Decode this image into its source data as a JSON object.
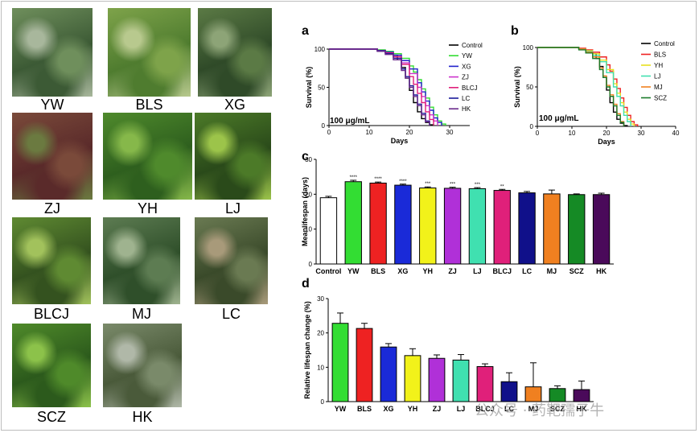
{
  "photos": [
    {
      "label": "YW",
      "colors": [
        "#3c5a35",
        "#6f8f5c",
        "#a8b79c"
      ]
    },
    {
      "label": "BLS",
      "colors": [
        "#4f7c2f",
        "#7ea34a",
        "#b8c98e"
      ]
    },
    {
      "label": "XG",
      "colors": [
        "#2f4a28",
        "#5b7a45",
        "#8da477"
      ]
    },
    {
      "label": "ZJ",
      "colors": [
        "#5a2a2a",
        "#7a4a3a",
        "#6b7a40"
      ]
    },
    {
      "label": "YH",
      "colors": [
        "#2e5f1e",
        "#4f8a2c",
        "#86b84a"
      ]
    },
    {
      "label": "LJ",
      "colors": [
        "#2a4a1a",
        "#4c7a28",
        "#9cc44a"
      ]
    },
    {
      "label": "BLCJ",
      "colors": [
        "#34521f",
        "#5f8a32",
        "#a2c25c"
      ]
    },
    {
      "label": "MJ",
      "colors": [
        "#2f4f2a",
        "#5d7c52",
        "#9fb38f"
      ]
    },
    {
      "label": "LC",
      "colors": [
        "#3a4a2a",
        "#6a7a52",
        "#a89a7a"
      ]
    },
    {
      "label": "SCZ",
      "colors": [
        "#2c5a1c",
        "#4f8a2a",
        "#8cc24a"
      ]
    },
    {
      "label": "HK",
      "colors": [
        "#4a5a3a",
        "#7a8a6a",
        "#b0b8a8"
      ]
    }
  ],
  "panels": {
    "a": {
      "letter": "a",
      "annotation": "100 μg/mL"
    },
    "b": {
      "letter": "b",
      "annotation": "100 μg/mL"
    },
    "c": {
      "letter": "c"
    },
    "d": {
      "letter": "d"
    }
  },
  "watermark": "公众号 · 药靶孺子牛",
  "chart_data": [
    {
      "type": "line",
      "panel": "a",
      "xlabel": "Days",
      "ylabel": "Survival (%)",
      "xlim": [
        0,
        35
      ],
      "ylim": [
        0,
        100
      ],
      "xticks": [
        0,
        10,
        20,
        30
      ],
      "yticks": [
        0,
        50,
        100
      ],
      "series": [
        {
          "name": "Control",
          "color": "#000000",
          "x": [
            0,
            10,
            12,
            14,
            16,
            17,
            18,
            19,
            20,
            21,
            22,
            23,
            24,
            25,
            26
          ],
          "y": [
            100,
            100,
            98,
            96,
            92,
            86,
            76,
            62,
            46,
            30,
            18,
            9,
            4,
            1,
            0
          ]
        },
        {
          "name": "YW",
          "color": "#33dd33",
          "x": [
            0,
            10,
            12,
            14,
            16,
            18,
            20,
            21,
            22,
            23,
            24,
            25,
            26,
            27,
            28,
            29
          ],
          "y": [
            100,
            100,
            99,
            97,
            94,
            88,
            78,
            70,
            60,
            48,
            36,
            24,
            14,
            6,
            2,
            0
          ]
        },
        {
          "name": "XG",
          "color": "#2222cc",
          "x": [
            0,
            10,
            12,
            14,
            16,
            18,
            20,
            22,
            23,
            24,
            25,
            26,
            27,
            28
          ],
          "y": [
            100,
            100,
            98,
            96,
            92,
            85,
            74,
            56,
            44,
            32,
            20,
            10,
            4,
            0
          ]
        },
        {
          "name": "ZJ",
          "color": "#cc33cc",
          "x": [
            0,
            10,
            12,
            14,
            16,
            18,
            20,
            22,
            23,
            24,
            25,
            26,
            27
          ],
          "y": [
            100,
            100,
            98,
            95,
            90,
            82,
            68,
            50,
            38,
            26,
            14,
            6,
            0
          ]
        },
        {
          "name": "BLCJ",
          "color": "#e0207a",
          "x": [
            0,
            10,
            12,
            14,
            16,
            18,
            20,
            21,
            22,
            23,
            24,
            25,
            26
          ],
          "y": [
            100,
            100,
            98,
            95,
            90,
            80,
            64,
            54,
            42,
            30,
            18,
            8,
            0
          ]
        },
        {
          "name": "LC",
          "color": "#1a1a99",
          "x": [
            0,
            10,
            12,
            14,
            16,
            18,
            19,
            20,
            21,
            22,
            23,
            24,
            25
          ],
          "y": [
            100,
            100,
            98,
            94,
            88,
            74,
            64,
            52,
            40,
            28,
            16,
            6,
            0
          ]
        },
        {
          "name": "HK",
          "color": "#6a2a8a",
          "x": [
            0,
            10,
            12,
            14,
            16,
            18,
            19,
            20,
            21,
            22,
            23,
            24,
            25
          ],
          "y": [
            100,
            100,
            97,
            93,
            86,
            72,
            62,
            50,
            38,
            26,
            14,
            5,
            0
          ]
        }
      ]
    },
    {
      "type": "line",
      "panel": "b",
      "xlabel": "Days",
      "ylabel": "Survival (%)",
      "xlim": [
        0,
        40
      ],
      "ylim": [
        0,
        100
      ],
      "xticks": [
        0,
        10,
        20,
        30,
        40
      ],
      "yticks": [
        0,
        50,
        100
      ],
      "series": [
        {
          "name": "Control",
          "color": "#000000",
          "x": [
            0,
            10,
            12,
            14,
            16,
            17,
            18,
            19,
            20,
            21,
            22,
            23,
            24,
            25,
            26
          ],
          "y": [
            100,
            100,
            98,
            96,
            92,
            86,
            76,
            62,
            46,
            30,
            18,
            9,
            4,
            1,
            0
          ]
        },
        {
          "name": "BLS",
          "color": "#ee2222",
          "x": [
            0,
            10,
            12,
            14,
            16,
            18,
            20,
            21,
            22,
            23,
            24,
            25,
            26,
            27,
            28,
            29
          ],
          "y": [
            100,
            100,
            99,
            97,
            94,
            88,
            78,
            70,
            60,
            48,
            36,
            24,
            14,
            6,
            2,
            0
          ]
        },
        {
          "name": "YH",
          "color": "#e8e020",
          "x": [
            0,
            10,
            12,
            14,
            16,
            18,
            20,
            22,
            23,
            24,
            25,
            26,
            27,
            28
          ],
          "y": [
            100,
            100,
            98,
            96,
            92,
            84,
            72,
            54,
            42,
            30,
            18,
            9,
            3,
            0
          ]
        },
        {
          "name": "LJ",
          "color": "#40e0b0",
          "x": [
            0,
            10,
            12,
            14,
            16,
            18,
            20,
            22,
            23,
            24,
            25,
            26,
            27
          ],
          "y": [
            100,
            100,
            98,
            95,
            90,
            82,
            68,
            50,
            38,
            26,
            14,
            6,
            0
          ]
        },
        {
          "name": "MJ",
          "color": "#f08020",
          "x": [
            0,
            10,
            12,
            14,
            16,
            18,
            19,
            20,
            21,
            22,
            23,
            24,
            25
          ],
          "y": [
            100,
            100,
            98,
            94,
            88,
            74,
            64,
            52,
            40,
            28,
            16,
            6,
            0
          ]
        },
        {
          "name": "SCZ",
          "color": "#1a7a2a",
          "x": [
            0,
            10,
            12,
            14,
            16,
            18,
            19,
            20,
            21,
            22,
            23,
            24,
            25
          ],
          "y": [
            100,
            100,
            97,
            93,
            86,
            72,
            62,
            50,
            38,
            26,
            14,
            5,
            0
          ]
        }
      ]
    },
    {
      "type": "bar",
      "panel": "c",
      "ylabel": "Meanlifespan (days)",
      "ylim": [
        0,
        30
      ],
      "yticks": [
        0,
        10,
        20,
        30
      ],
      "categories": [
        "Control",
        "YW",
        "BLS",
        "XG",
        "YH",
        "ZJ",
        "LJ",
        "BLCJ",
        "LC",
        "MJ",
        "SCZ",
        "HK"
      ],
      "values": [
        19.0,
        23.6,
        23.2,
        22.6,
        21.8,
        21.7,
        21.6,
        21.1,
        20.4,
        20.1,
        19.9,
        19.9
      ],
      "errors": [
        0.4,
        0.4,
        0.3,
        0.3,
        0.3,
        0.3,
        0.3,
        0.3,
        0.4,
        1.1,
        0.2,
        0.4
      ],
      "significance": [
        "",
        "****",
        "****",
        "****",
        "***",
        "***",
        "***",
        "**",
        "",
        "",
        "",
        ""
      ],
      "colors": [
        "#ffffff",
        "#33dd33",
        "#ee2222",
        "#1a2ad8",
        "#f2f21a",
        "#b030d8",
        "#40e0b0",
        "#e0207a",
        "#10108a",
        "#f08020",
        "#158a25",
        "#4a0a5a"
      ]
    },
    {
      "type": "bar",
      "panel": "d",
      "ylabel": "Relative lifespan change (%)",
      "ylim": [
        0,
        30
      ],
      "yticks": [
        0,
        10,
        20,
        30
      ],
      "categories": [
        "YW",
        "BLS",
        "XG",
        "YH",
        "ZJ",
        "LJ",
        "BLCJ",
        "LC",
        "MJ",
        "SCZ",
        "HK"
      ],
      "values": [
        22.8,
        21.3,
        15.9,
        13.4,
        12.6,
        12.1,
        10.2,
        5.8,
        4.3,
        3.8,
        3.5
      ],
      "errors": [
        3.0,
        1.5,
        1.0,
        2.0,
        1.0,
        1.6,
        0.8,
        2.6,
        7.0,
        0.8,
        2.5
      ],
      "colors": [
        "#33dd33",
        "#ee2222",
        "#1a2ad8",
        "#f2f21a",
        "#b030d8",
        "#40e0b0",
        "#e0207a",
        "#10108a",
        "#f08020",
        "#158a25",
        "#4a0a5a"
      ]
    }
  ]
}
